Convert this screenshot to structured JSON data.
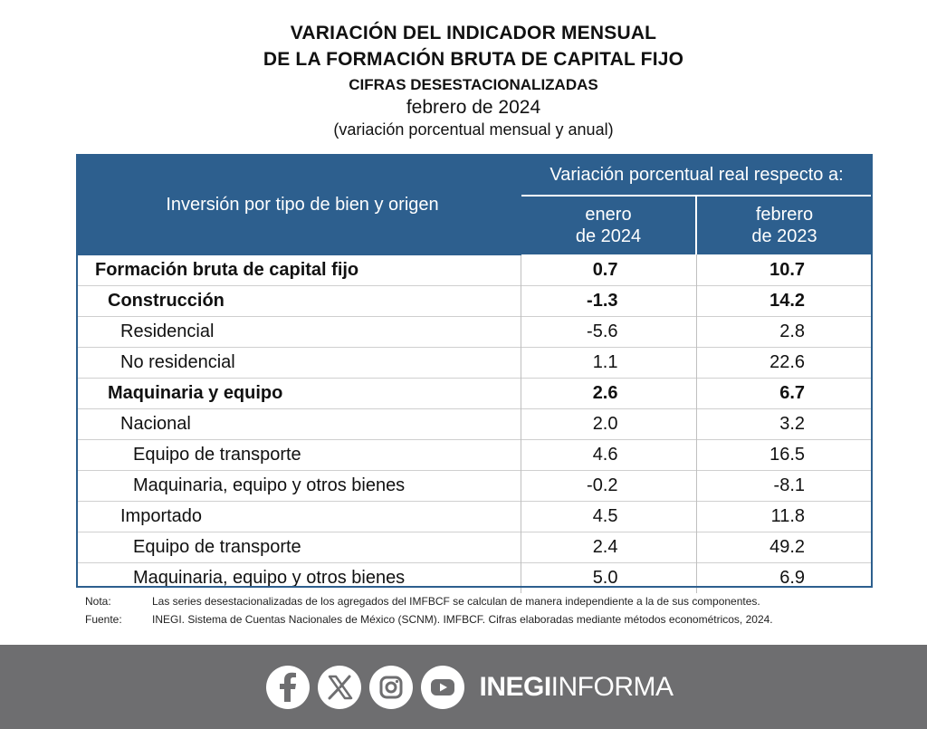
{
  "title": {
    "line1": "VARIACIÓN DEL INDICADOR MENSUAL",
    "line2": "DE LA FORMACIÓN BRUTA DE CAPITAL FIJO",
    "line3": "CIFRAS DESESTACIONALIZADAS",
    "line4": "febrero de 2024",
    "line5": "(variación porcentual mensual y anual)"
  },
  "table": {
    "header_main": "Inversión por tipo de bien y origen",
    "header_span": "Variación porcentual real respecto a:",
    "col1_line1": "enero",
    "col1_line2": "de 2024",
    "col2_line1": "febrero",
    "col2_line2": "de 2023",
    "rows": [
      {
        "label": "Formación bruta de capital fijo",
        "v1": "0.7",
        "v2": "10.7"
      },
      {
        "label": "Construcción",
        "v1": "-1.3",
        "v2": "14.2"
      },
      {
        "label": "Residencial",
        "v1": "-5.6",
        "v2": "2.8"
      },
      {
        "label": "No residencial",
        "v1": "1.1",
        "v2": "22.6"
      },
      {
        "label": "Maquinaria y equipo",
        "v1": "2.6",
        "v2": "6.7"
      },
      {
        "label": "Nacional",
        "v1": "2.0",
        "v2": "3.2"
      },
      {
        "label": "Equipo de transporte",
        "v1": "4.6",
        "v2": "16.5"
      },
      {
        "label": "Maquinaria, equipo y otros bienes",
        "v1": "-0.2",
        "v2": "-8.1"
      },
      {
        "label": "Importado",
        "v1": "4.5",
        "v2": "11.8"
      },
      {
        "label": "Equipo de transporte",
        "v1": "2.4",
        "v2": "49.2"
      },
      {
        "label": "Maquinaria, equipo y otros bienes",
        "v1": "5.0",
        "v2": "6.9"
      }
    ]
  },
  "notes": {
    "nota_label": "Nota:",
    "nota_text": "Las series desestacionalizadas de los agregados del IMFBCF se calculan de manera independiente a la de sus componentes.",
    "fuente_label": "Fuente:",
    "fuente_text": "INEGI. Sistema de Cuentas Nacionales de México (SCNM). IMFBCF. Cifras elaboradas mediante métodos econométricos, 2024."
  },
  "footer": {
    "brand_bold": "INEGI",
    "brand_light": "INFORMA",
    "icons": [
      "facebook-icon",
      "x-icon",
      "instagram-icon",
      "youtube-icon"
    ],
    "bg_color": "#6e6e70"
  },
  "colors": {
    "header_bg": "#2d5f8e"
  }
}
